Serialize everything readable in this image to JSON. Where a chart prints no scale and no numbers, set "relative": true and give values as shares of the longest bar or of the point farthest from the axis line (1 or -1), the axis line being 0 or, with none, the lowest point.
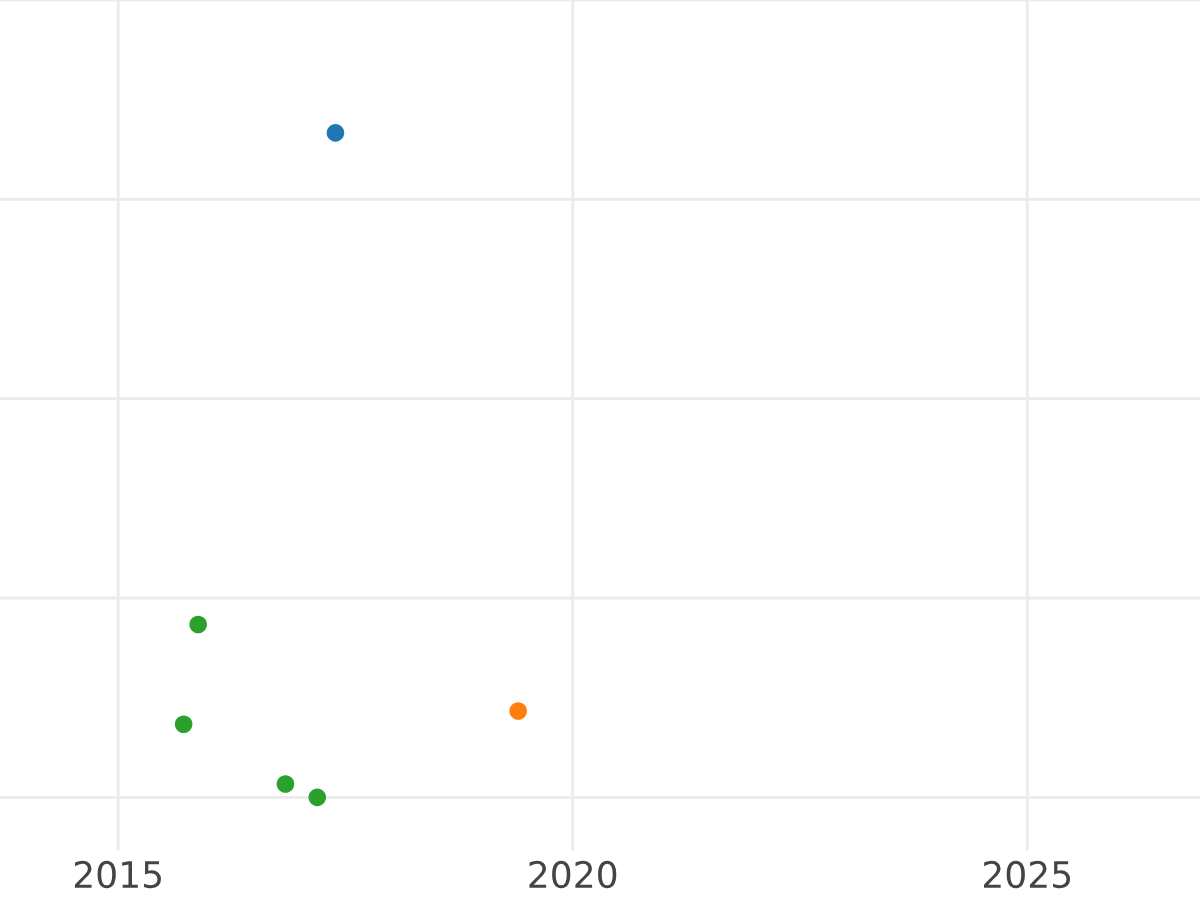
{
  "chart_data": {
    "type": "scatter",
    "relative": true,
    "grid": true,
    "series": [
      {
        "color": "#1f77b4",
        "x": [
          2017.39
        ],
        "values": [
          1
        ]
      },
      {
        "color": "#ff7f0e",
        "x": [
          2019.4
        ],
        "values": [
          0.13
        ]
      },
      {
        "color": "#2ca02c",
        "x": [
          2015.88,
          2015.72,
          2016.84,
          2017.19
        ],
        "values": [
          0.26,
          0.11,
          0.02,
          0
        ]
      }
    ],
    "xlim": [
      2013.7,
      2026.9
    ],
    "xticks": [
      2015,
      2020,
      2025
    ],
    "marker": "circle"
  }
}
